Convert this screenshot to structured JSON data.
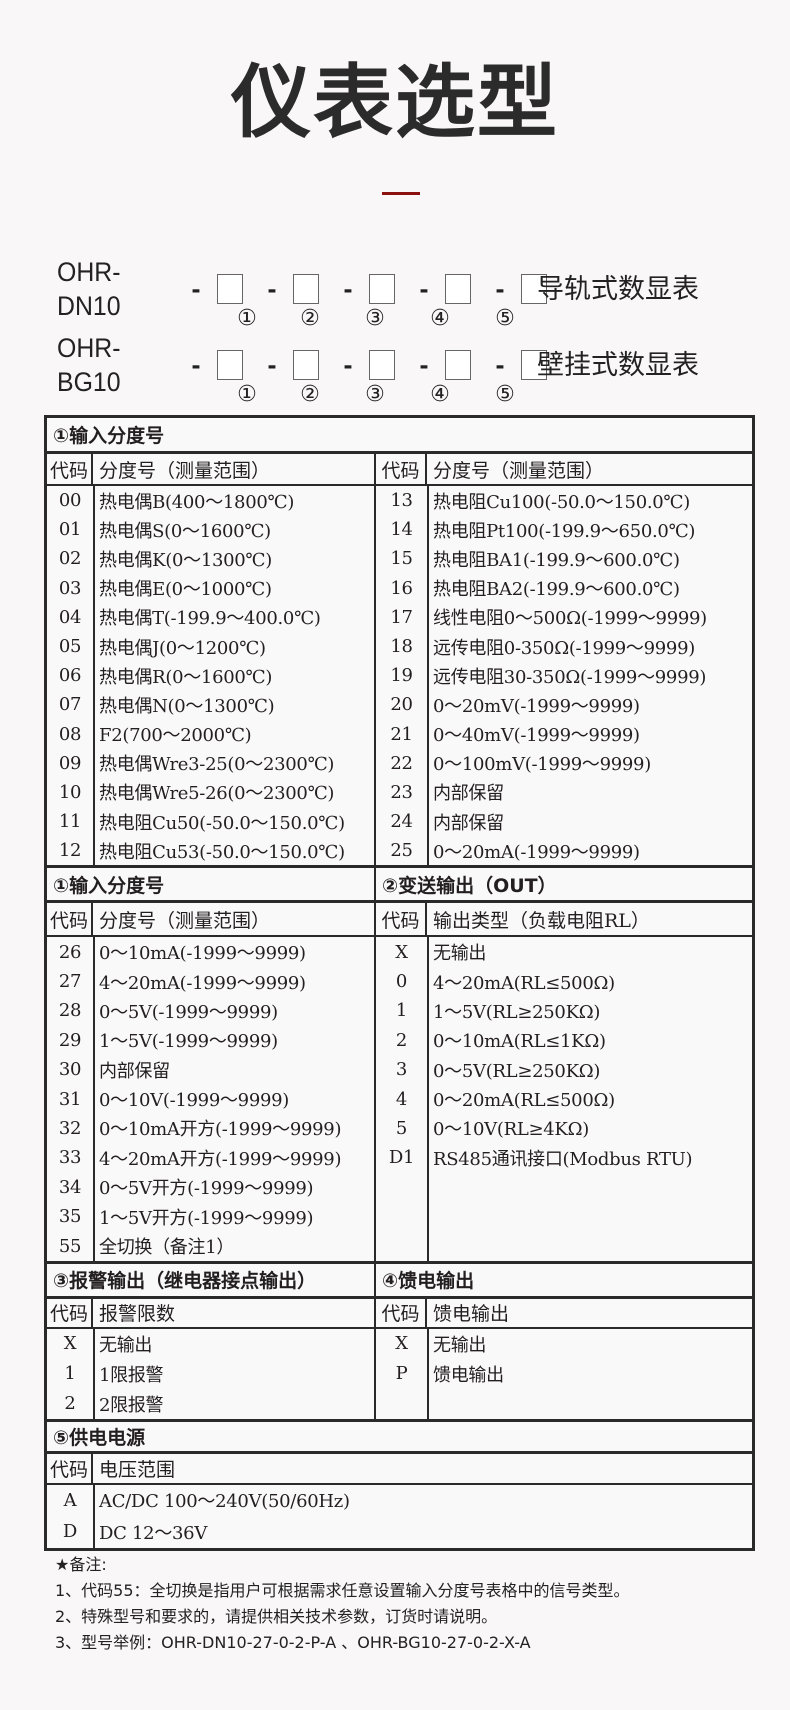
{
  "title": "仪表选型",
  "accent_color": "#8b1010",
  "models": [
    {
      "name": "OHR-DN10",
      "desc": "导轨式数显表",
      "slots": [
        "①",
        "②",
        "③",
        "④",
        "⑤"
      ]
    },
    {
      "name": "OHR-BG10",
      "desc": "壁挂式数显表",
      "slots": [
        "①",
        "②",
        "③",
        "④",
        "⑤"
      ]
    }
  ],
  "sections": [
    {
      "left": {
        "title": "①输入分度号",
        "code_head": "代码",
        "desc_head": "分度号（测量范围）",
        "rows": [
          [
            "00",
            "热电偶B(400～1800℃)"
          ],
          [
            "01",
            "热电偶S(0～1600℃)"
          ],
          [
            "02",
            "热电偶K(0～1300℃)"
          ],
          [
            "03",
            "热电偶E(0～1000℃)"
          ],
          [
            "04",
            "热电偶T(-199.9～400.0℃)"
          ],
          [
            "05",
            "热电偶J(0～1200℃)"
          ],
          [
            "06",
            "热电偶R(0～1600℃)"
          ],
          [
            "07",
            "热电偶N(0～1300℃)"
          ],
          [
            "08",
            "F2(700～2000℃)"
          ],
          [
            "09",
            "热电偶Wre3-25(0～2300℃)"
          ],
          [
            "10",
            "热电偶Wre5-26(0～2300℃)"
          ],
          [
            "11",
            "热电阻Cu50(-50.0～150.0℃)"
          ],
          [
            "12",
            "热电阻Cu53(-50.0～150.0℃)"
          ]
        ]
      },
      "right": {
        "title": "",
        "code_head": "代码",
        "desc_head": "分度号（测量范围）",
        "rows": [
          [
            "13",
            "热电阻Cu100(-50.0～150.0℃)"
          ],
          [
            "14",
            "热电阻Pt100(-199.9～650.0℃)"
          ],
          [
            "15",
            "热电阻BA1(-199.9～600.0℃)"
          ],
          [
            "16",
            "热电阻BA2(-199.9～600.0℃)"
          ],
          [
            "17",
            "线性电阻0～500Ω(-1999～9999)"
          ],
          [
            "18",
            "远传电阻0-350Ω(-1999～9999)"
          ],
          [
            "19",
            "远传电阻30-350Ω(-1999～9999)"
          ],
          [
            "20",
            "0～20mV(-1999～9999)"
          ],
          [
            "21",
            "0～40mV(-1999～9999)"
          ],
          [
            "22",
            "0～100mV(-1999～9999)"
          ],
          [
            "23",
            "内部保留"
          ],
          [
            "24",
            "内部保留"
          ],
          [
            "25",
            "0～20mA(-1999～9999)"
          ]
        ]
      }
    },
    {
      "left": {
        "title": "①输入分度号",
        "code_head": "代码",
        "desc_head": "分度号（测量范围）",
        "rows": [
          [
            "26",
            "0～10mA(-1999～9999)"
          ],
          [
            "27",
            "4～20mA(-1999～9999)"
          ],
          [
            "28",
            "0～5V(-1999～9999)"
          ],
          [
            "29",
            "1～5V(-1999～9999)"
          ],
          [
            "30",
            "内部保留"
          ],
          [
            "31",
            "0～10V(-1999～9999)"
          ],
          [
            "32",
            "0～10mA开方(-1999～9999)"
          ],
          [
            "33",
            "4～20mA开方(-1999～9999)"
          ],
          [
            "34",
            "0～5V开方(-1999～9999)"
          ],
          [
            "35",
            "1～5V开方(-1999～9999)"
          ],
          [
            "55",
            "全切换（备注1）"
          ]
        ]
      },
      "right": {
        "title": "②变送输出（OUT）",
        "code_head": "代码",
        "desc_head": "输出类型（负载电阻RL）",
        "rows": [
          [
            "X",
            "无输出"
          ],
          [
            "0",
            "4～20mA(RL≤500Ω)"
          ],
          [
            "1",
            "1～5V(RL≥250KΩ)"
          ],
          [
            "2",
            "0～10mA(RL≤1KΩ)"
          ],
          [
            "3",
            "0～5V(RL≥250KΩ)"
          ],
          [
            "4",
            "0～20mA(RL≤500Ω)"
          ],
          [
            "5",
            "0～10V(RL≥4KΩ)"
          ],
          [
            "D1",
            "RS485通讯接口(Modbus RTU)"
          ]
        ]
      }
    },
    {
      "left": {
        "title": "③报警输出（继电器接点输出）",
        "code_head": "代码",
        "desc_head": "报警限数",
        "rows": [
          [
            "X",
            "无输出"
          ],
          [
            "1",
            "1限报警"
          ],
          [
            "2",
            "2限报警"
          ]
        ]
      },
      "right": {
        "title": "④馈电输出",
        "code_head": "代码",
        "desc_head": "馈电输出",
        "rows": [
          [
            "X",
            "无输出"
          ],
          [
            "P",
            "馈电输出"
          ]
        ]
      }
    },
    {
      "full": {
        "title": "⑤供电电源",
        "code_head": "代码",
        "desc_head": "电压范围",
        "rows": [
          [
            "A",
            "AC/DC 100～240V(50/60Hz)"
          ],
          [
            "D",
            "DC 12～36V"
          ]
        ]
      }
    }
  ],
  "notes": [
    "★备注:",
    "1、代码55：全切换是指用户可根据需求任意设置输入分度号表格中的信号类型。",
    "2、特殊型号和要求的，请提供相关技术参数，订货时请说明。",
    "3、型号举例：OHR-DN10-27-0-2-P-A 、OHR-BG10-27-0-2-X-A"
  ]
}
